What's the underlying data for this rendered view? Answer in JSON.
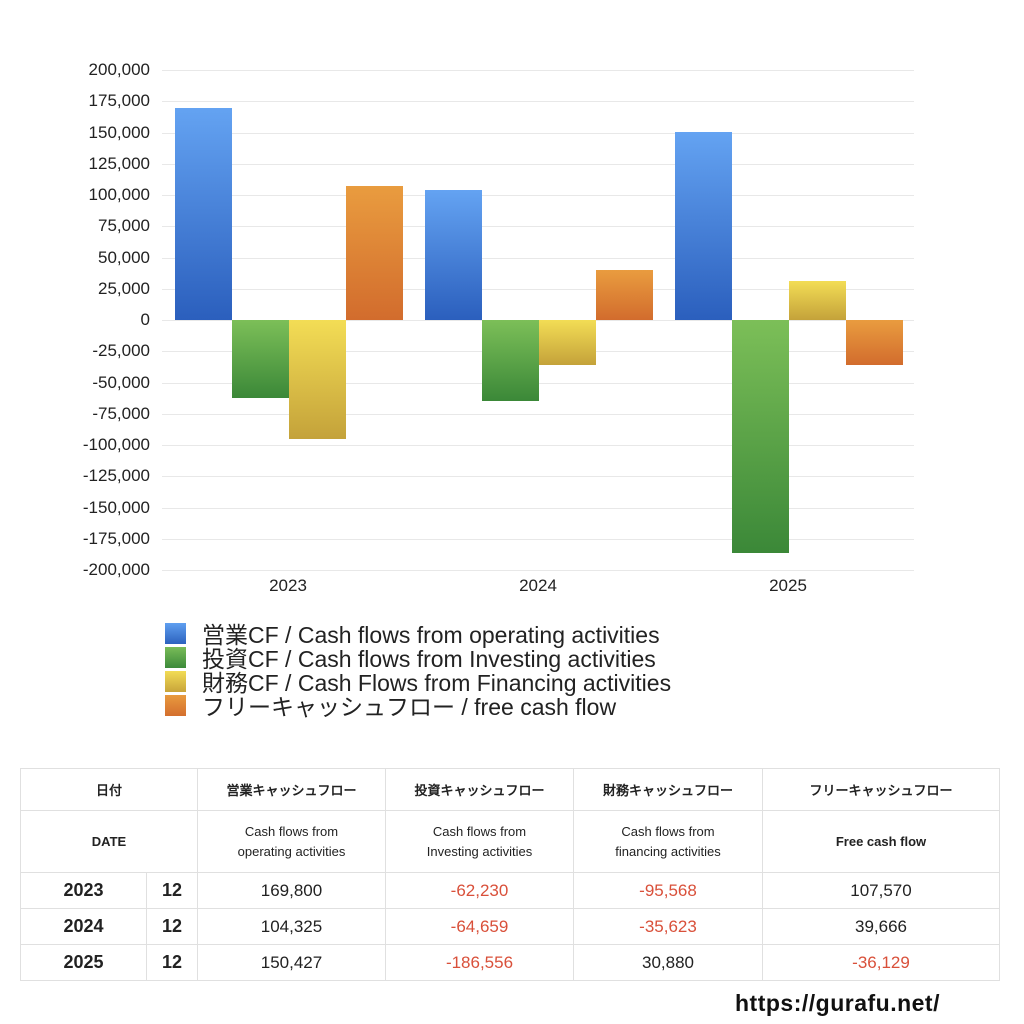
{
  "chart_data": {
    "type": "bar",
    "title": "",
    "xlabel": "",
    "ylabel": "",
    "ylim": [
      -200000,
      200000
    ],
    "yticks": [
      "200,000",
      "175,000",
      "150,000",
      "125,000",
      "100,000",
      "75,000",
      "50,000",
      "25,000",
      "0",
      "-25,000",
      "-50,000",
      "-75,000",
      "-100,000",
      "-125,000",
      "-150,000",
      "-175,000",
      "-200,000"
    ],
    "grid": true,
    "legend_position": "bottom",
    "categories": [
      "2023",
      "2024",
      "2025"
    ],
    "series": [
      {
        "name": "営業CF / Cash flows from operating activities",
        "color": "#3f7fd9",
        "values": [
          169800,
          104325,
          150427
        ]
      },
      {
        "name": "投資CF / Cash flows from Investing activities",
        "color": "#5aa84a",
        "values": [
          -62230,
          -64659,
          -186556
        ]
      },
      {
        "name": "財務CF / Cash Flows from Financing activities",
        "color": "#e2c441",
        "values": [
          -95568,
          -35623,
          30880
        ]
      },
      {
        "name": "フリーキャッシュフロー / free cash flow",
        "color": "#e0843a",
        "values": [
          107570,
          39666,
          -36129
        ]
      }
    ]
  },
  "legend": [
    "営業CF / Cash flows from operating activities",
    "投資CF / Cash flows from Investing activities",
    "財務CF / Cash Flows from Financing activities",
    "フリーキャッシュフロー / free cash flow"
  ],
  "table": {
    "header_jp": [
      "日付",
      "営業キャッシュフロー",
      "投資キャッシュフロー",
      "財務キャッシュフロー",
      "フリーキャッシュフロー"
    ],
    "header_en": [
      "DATE",
      "Cash flows from\noperating activities",
      "Cash flows from\nInvesting activities",
      "Cash flows from\nfinancing activities",
      "Free cash flow"
    ],
    "rows": [
      {
        "year": "2023",
        "month": "12",
        "operating": "169,800",
        "investing": "-62,230",
        "financing": "-95,568",
        "free": "107,570"
      },
      {
        "year": "2024",
        "month": "12",
        "operating": "104,325",
        "investing": "-64,659",
        "financing": "-35,623",
        "free": "39,666"
      },
      {
        "year": "2025",
        "month": "12",
        "operating": "150,427",
        "investing": "-186,556",
        "financing": "30,880",
        "free": "-36,129"
      }
    ],
    "negative_color": "#d9503a"
  },
  "footer": {
    "site": "https://gurafu.net/"
  }
}
